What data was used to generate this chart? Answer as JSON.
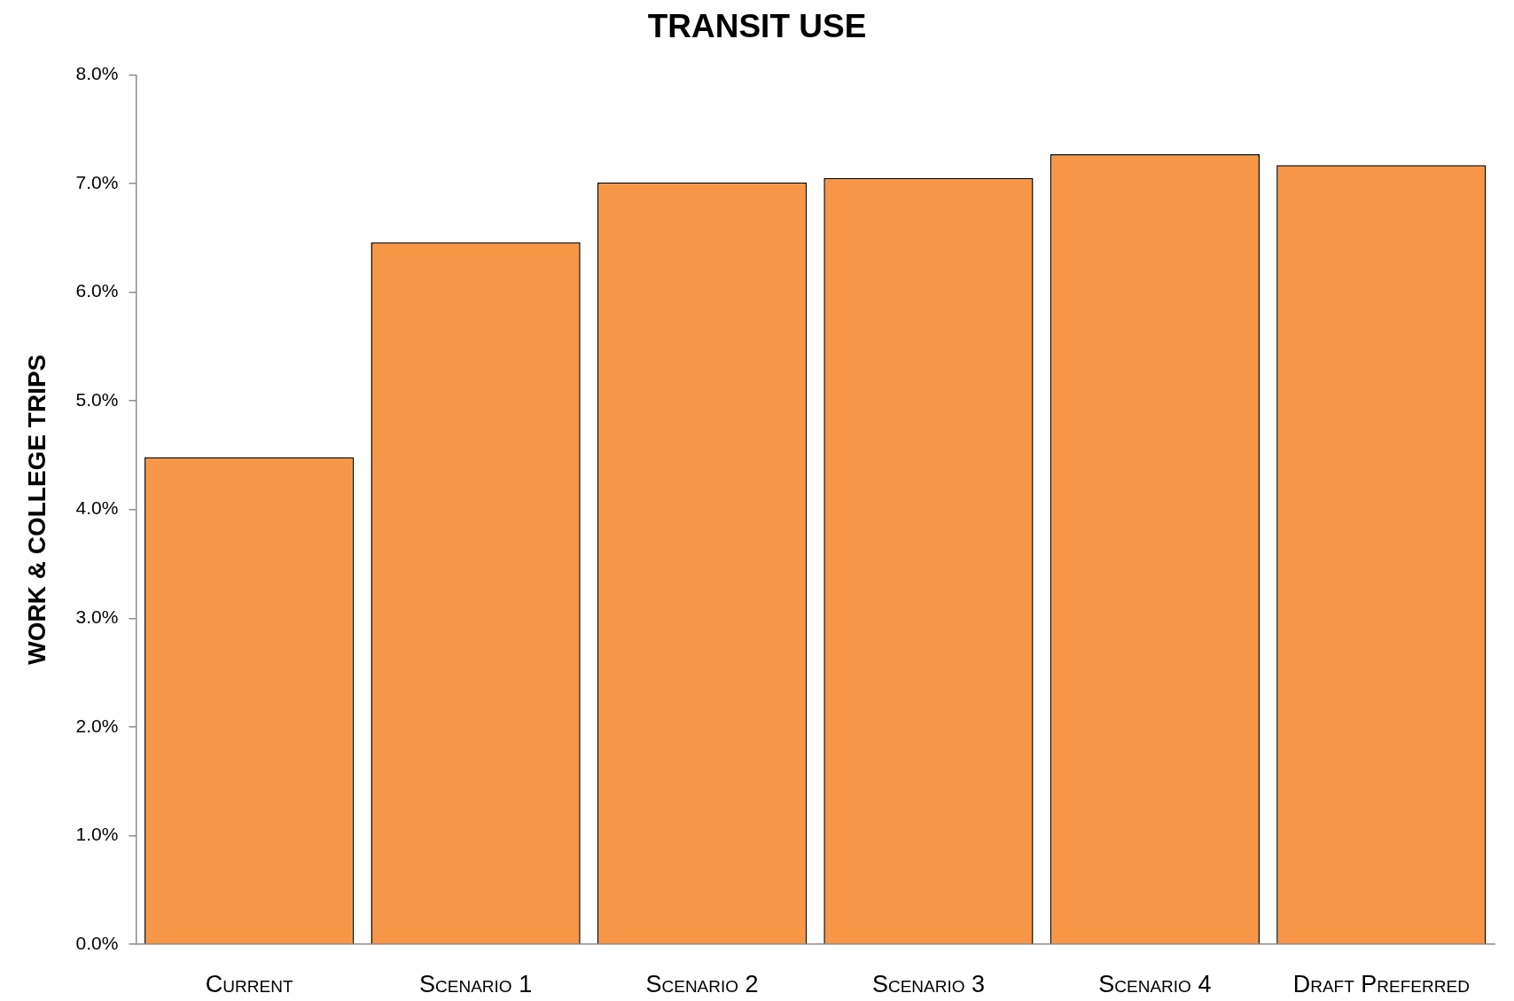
{
  "chart_data": {
    "type": "bar",
    "title": "TRANSIT USE",
    "ylabel": "WORK & COLLEGE TRIPS",
    "categories": [
      "Current",
      "Scenario 1",
      "Scenario 2",
      "Scenario 3",
      "Scenario 4",
      "Draft Preferred"
    ],
    "values": [
      4.48,
      6.46,
      7.01,
      7.05,
      7.27,
      7.17
    ],
    "color": "#f79646",
    "ylim": [
      0,
      8
    ],
    "yticks": [
      {
        "value": 0,
        "label": "0.0%"
      },
      {
        "value": 1,
        "label": "1.0%"
      },
      {
        "value": 2,
        "label": "2.0%"
      },
      {
        "value": 3,
        "label": "3.0%"
      },
      {
        "value": 4,
        "label": "4.0%"
      },
      {
        "value": 5,
        "label": "5.0%"
      },
      {
        "value": 6,
        "label": "6.0%"
      },
      {
        "value": 7,
        "label": "7.0%"
      },
      {
        "value": 8,
        "label": "8.0%"
      }
    ],
    "grid": false
  }
}
